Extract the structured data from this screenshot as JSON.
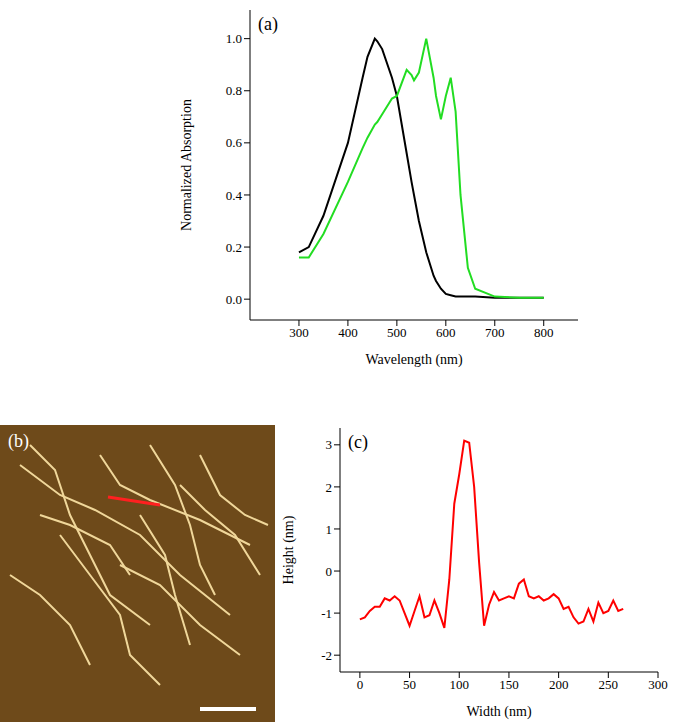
{
  "chart_data": [
    {
      "type": "line",
      "title": "(a)",
      "x_label": "Wavelength (nm)",
      "y_label": "Normalized Absorption",
      "x": [
        300,
        320,
        350,
        400,
        430,
        440,
        455,
        460,
        470,
        490,
        500,
        520,
        530,
        535,
        545,
        560,
        575,
        580,
        590,
        600,
        610,
        620,
        630,
        645,
        660,
        700,
        750,
        800
      ],
      "series": [
        {
          "color": "#000000",
          "values": [
            0.18,
            0.2,
            0.32,
            0.6,
            0.85,
            0.93,
            1.0,
            0.99,
            0.96,
            0.85,
            0.78,
            0.56,
            0.45,
            0.4,
            0.3,
            0.18,
            0.09,
            0.07,
            0.04,
            0.02,
            0.015,
            0.01,
            0.01,
            0.01,
            0.01,
            0.005,
            0.005,
            0.005
          ]
        },
        {
          "color": "#22dd22",
          "values": [
            0.16,
            0.16,
            0.25,
            0.45,
            0.58,
            0.62,
            0.67,
            0.68,
            0.71,
            0.77,
            0.78,
            0.88,
            0.86,
            0.84,
            0.87,
            1.0,
            0.85,
            0.78,
            0.69,
            0.78,
            0.85,
            0.72,
            0.4,
            0.12,
            0.04,
            0.01,
            0.005,
            0.005
          ]
        }
      ],
      "xlim": [
        200,
        870
      ],
      "xticks": [
        300,
        400,
        500,
        600,
        700,
        800
      ],
      "ylim": [
        -0.08,
        1.11
      ],
      "yticks": [
        {
          "value": 0,
          "label": "0.0"
        },
        0.2,
        0.4,
        0.6,
        0.8,
        {
          "value": 1,
          "label": "1.0"
        }
      ]
    },
    {
      "type": "image",
      "title": "(b)"
    },
    {
      "type": "line",
      "title": "(c)",
      "x_label": "Width (nm)",
      "y_label": "Height (nm)",
      "x": [
        0,
        5,
        10,
        15,
        20,
        25,
        30,
        35,
        40,
        45,
        50,
        55,
        60,
        65,
        70,
        75,
        80,
        85,
        90,
        95,
        100,
        105,
        110,
        115,
        120,
        125,
        130,
        135,
        140,
        145,
        150,
        155,
        160,
        165,
        170,
        175,
        180,
        185,
        190,
        195,
        200,
        205,
        210,
        215,
        220,
        225,
        230,
        235,
        240,
        245,
        250,
        255,
        260,
        265
      ],
      "series": [
        {
          "color": "#ff0000",
          "values": [
            -1.15,
            -1.1,
            -0.95,
            -0.85,
            -0.85,
            -0.65,
            -0.7,
            -0.6,
            -0.7,
            -1.0,
            -1.3,
            -0.95,
            -0.6,
            -1.1,
            -1.05,
            -0.7,
            -1.0,
            -1.35,
            -0.2,
            1.6,
            2.3,
            3.1,
            3.05,
            2.0,
            0.2,
            -1.3,
            -0.8,
            -0.5,
            -0.7,
            -0.65,
            -0.6,
            -0.65,
            -0.3,
            -0.2,
            -0.6,
            -0.65,
            -0.6,
            -0.7,
            -0.65,
            -0.55,
            -0.65,
            -0.9,
            -0.85,
            -1.1,
            -1.25,
            -1.2,
            -0.9,
            -1.2,
            -0.75,
            -1.0,
            -0.95,
            -0.7,
            -0.95,
            -0.9
          ]
        }
      ],
      "xlim": [
        -20,
        300
      ],
      "xticks": [
        0,
        50,
        100,
        150,
        200,
        250,
        300
      ],
      "ylim": [
        -2.4,
        3.4
      ],
      "yticks": [
        -2,
        -1,
        0,
        1,
        2,
        3
      ]
    }
  ]
}
